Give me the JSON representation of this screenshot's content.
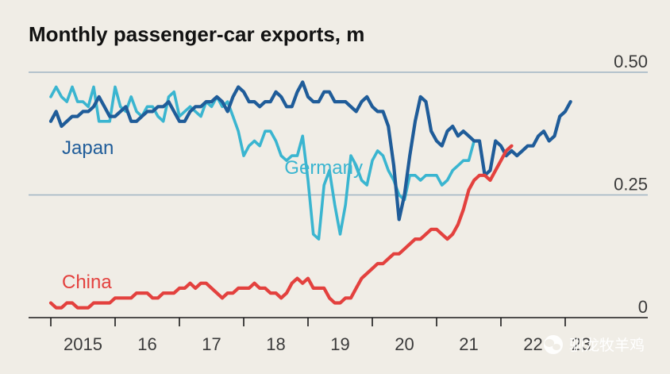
{
  "chart_data": {
    "type": "line",
    "title": "Monthly passenger-car exports, m",
    "xlabel": "",
    "ylabel": "",
    "ylim": [
      0,
      0.5
    ],
    "y_ticks": [
      {
        "value": 0,
        "label": "0"
      },
      {
        "value": 0.25,
        "label": "0.25"
      },
      {
        "value": 0.5,
        "label": "0.50"
      }
    ],
    "x_start": 2015.0,
    "x_step": 0.0833333,
    "x_ticks": [
      {
        "value": 2015.5,
        "label": "2015"
      },
      {
        "value": 2016.5,
        "label": "16"
      },
      {
        "value": 2017.5,
        "label": "17"
      },
      {
        "value": 2018.5,
        "label": "18"
      },
      {
        "value": 2019.5,
        "label": "19"
      },
      {
        "value": 2020.5,
        "label": "20"
      },
      {
        "value": 2021.5,
        "label": "21"
      },
      {
        "value": 2022.5,
        "label": "22"
      },
      {
        "value": 2023.25,
        "label": "23"
      }
    ],
    "year_dividers": [
      2015,
      2016,
      2017,
      2018,
      2019,
      2020,
      2021,
      2022,
      2023
    ],
    "series": [
      {
        "name": "Japan",
        "color": "#1f5c99",
        "values": [
          0.4,
          0.42,
          0.39,
          0.4,
          0.41,
          0.41,
          0.42,
          0.42,
          0.43,
          0.45,
          0.43,
          0.41,
          0.41,
          0.42,
          0.43,
          0.4,
          0.4,
          0.41,
          0.42,
          0.42,
          0.43,
          0.43,
          0.44,
          0.42,
          0.4,
          0.4,
          0.42,
          0.43,
          0.43,
          0.44,
          0.44,
          0.45,
          0.44,
          0.42,
          0.45,
          0.47,
          0.46,
          0.44,
          0.44,
          0.43,
          0.44,
          0.44,
          0.46,
          0.45,
          0.43,
          0.43,
          0.46,
          0.48,
          0.45,
          0.44,
          0.44,
          0.46,
          0.46,
          0.44,
          0.44,
          0.44,
          0.43,
          0.42,
          0.44,
          0.45,
          0.43,
          0.42,
          0.42,
          0.39,
          0.31,
          0.2,
          0.25,
          0.33,
          0.4,
          0.45,
          0.44,
          0.38,
          0.36,
          0.35,
          0.38,
          0.39,
          0.37,
          0.38,
          0.37,
          0.36,
          0.36,
          0.29,
          0.3,
          0.36,
          0.35,
          0.33,
          0.34,
          0.33,
          0.34,
          0.35,
          0.35,
          0.37,
          0.38,
          0.36,
          0.37,
          0.41,
          0.42,
          0.44
        ]
      },
      {
        "name": "Germany",
        "color": "#3ab5d0",
        "values": [
          0.45,
          0.47,
          0.45,
          0.44,
          0.47,
          0.44,
          0.44,
          0.43,
          0.47,
          0.4,
          0.4,
          0.4,
          0.47,
          0.43,
          0.42,
          0.45,
          0.42,
          0.41,
          0.43,
          0.43,
          0.41,
          0.4,
          0.45,
          0.46,
          0.41,
          0.42,
          0.43,
          0.42,
          0.41,
          0.44,
          0.43,
          0.45,
          0.43,
          0.44,
          0.41,
          0.38,
          0.33,
          0.35,
          0.36,
          0.35,
          0.38,
          0.38,
          0.36,
          0.33,
          0.32,
          0.33,
          0.33,
          0.37,
          0.28,
          0.17,
          0.16,
          0.27,
          0.3,
          0.23,
          0.17,
          0.23,
          0.33,
          0.31,
          0.28,
          0.27,
          0.32,
          0.34,
          0.33,
          0.3,
          0.28,
          0.25,
          0.24,
          0.29,
          0.29,
          0.28,
          0.29,
          0.29,
          0.29,
          0.27,
          0.28,
          0.3,
          0.31,
          0.32,
          0.32,
          0.36,
          0.36
        ]
      },
      {
        "name": "China",
        "color": "#e3413e",
        "values": [
          0.03,
          0.02,
          0.02,
          0.03,
          0.03,
          0.02,
          0.02,
          0.02,
          0.03,
          0.03,
          0.03,
          0.03,
          0.04,
          0.04,
          0.04,
          0.04,
          0.05,
          0.05,
          0.05,
          0.04,
          0.04,
          0.05,
          0.05,
          0.05,
          0.06,
          0.06,
          0.07,
          0.06,
          0.07,
          0.07,
          0.06,
          0.05,
          0.04,
          0.05,
          0.05,
          0.06,
          0.06,
          0.06,
          0.07,
          0.06,
          0.06,
          0.05,
          0.05,
          0.04,
          0.05,
          0.07,
          0.08,
          0.07,
          0.08,
          0.06,
          0.06,
          0.06,
          0.04,
          0.03,
          0.03,
          0.04,
          0.04,
          0.06,
          0.08,
          0.09,
          0.1,
          0.11,
          0.11,
          0.12,
          0.13,
          0.13,
          0.14,
          0.15,
          0.16,
          0.16,
          0.17,
          0.18,
          0.18,
          0.17,
          0.16,
          0.17,
          0.19,
          0.22,
          0.26,
          0.28,
          0.29,
          0.29,
          0.28,
          0.3,
          0.32,
          0.34,
          0.35
        ]
      }
    ]
  },
  "watermark": {
    "icon": "wechat-logo-icon",
    "text": "驯龙牧羊鸡"
  }
}
